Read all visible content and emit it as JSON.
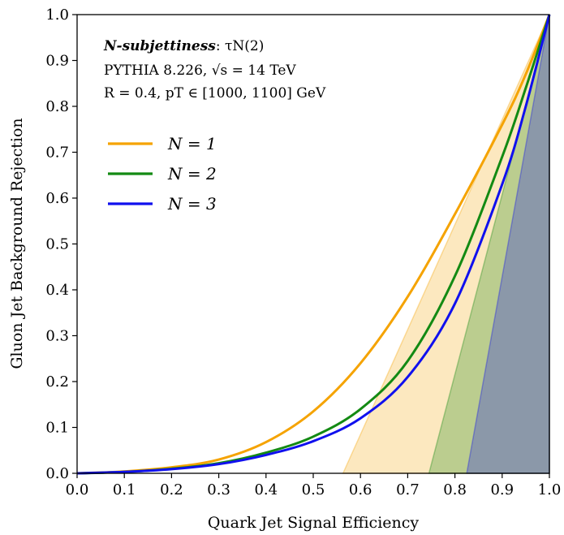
{
  "chart_data": {
    "type": "line",
    "xlabel": "Quark Jet Signal Efficiency",
    "ylabel": "Gluon Jet Background Rejection",
    "xlim": [
      0.0,
      1.0
    ],
    "ylim": [
      0.0,
      1.0
    ],
    "x_ticks": [
      "0.0",
      "0.1",
      "0.2",
      "0.3",
      "0.4",
      "0.5",
      "0.6",
      "0.7",
      "0.8",
      "0.9",
      "1.0"
    ],
    "y_ticks": [
      "0.0",
      "0.1",
      "0.2",
      "0.3",
      "0.4",
      "0.5",
      "0.6",
      "0.7",
      "0.8",
      "0.9",
      "1.0"
    ],
    "grid": false,
    "legend_position": "upper-left",
    "annotations": {
      "line1_bold": "N-subjettiness",
      "line1_rest": ": τN(2)",
      "line2": "PYTHIA 8.226, √s = 14 TeV",
      "line3": "R = 0.4, pT ∈ [1000, 1100] GeV"
    },
    "series": [
      {
        "name": "N = 1",
        "color": "#f5a300",
        "x": [
          0.0,
          0.1,
          0.2,
          0.3,
          0.4,
          0.5,
          0.6,
          0.7,
          0.8,
          0.9,
          0.95,
          1.0
        ],
        "y": [
          0.0,
          0.004,
          0.013,
          0.03,
          0.068,
          0.135,
          0.24,
          0.385,
          0.565,
          0.76,
          0.87,
          1.0
        ],
        "band_x_at_y0": 0.563
      },
      {
        "name": "N = 2",
        "color": "#138a13",
        "x": [
          0.0,
          0.1,
          0.2,
          0.3,
          0.4,
          0.5,
          0.6,
          0.7,
          0.8,
          0.9,
          0.95,
          1.0
        ],
        "y": [
          0.0,
          0.003,
          0.01,
          0.022,
          0.045,
          0.08,
          0.14,
          0.245,
          0.43,
          0.69,
          0.84,
          1.0
        ],
        "band_x_at_y0": 0.745
      },
      {
        "name": "N = 3",
        "color": "#1010ee",
        "x": [
          0.0,
          0.1,
          0.2,
          0.3,
          0.4,
          0.5,
          0.6,
          0.7,
          0.8,
          0.9,
          0.95,
          1.0
        ],
        "y": [
          0.0,
          0.003,
          0.009,
          0.02,
          0.04,
          0.07,
          0.12,
          0.21,
          0.37,
          0.63,
          0.8,
          1.0
        ],
        "band_x_at_y0": 0.825
      }
    ]
  }
}
